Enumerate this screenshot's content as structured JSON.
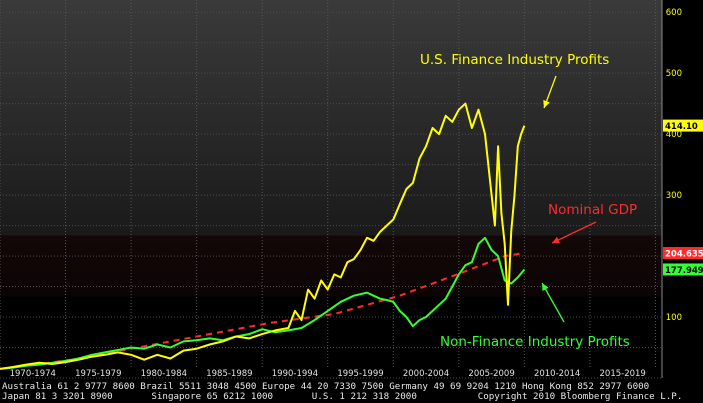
{
  "chart_data": {
    "type": "line",
    "title": "",
    "xlabel": "",
    "ylabel": "",
    "x_tick_labels": [
      "1970-1974",
      "1975-1979",
      "1980-1984",
      "1985-1989",
      "1990-1994",
      "1995-1999",
      "2000-2004",
      "2005-2009",
      "2010-2014",
      "2015-2019"
    ],
    "x_range": [
      1969.5,
      2020.0
    ],
    "y_ticks": [
      100,
      200,
      300,
      400,
      500,
      600
    ],
    "y_range": [
      0,
      620
    ],
    "grid": true,
    "series": [
      {
        "name": "U.S. Finance Industry Profits",
        "color": "#ffff00",
        "end_label": "414.10",
        "x": [
          1969.5,
          1970.5,
          1971.5,
          1972.5,
          1973.5,
          1974.5,
          1975.5,
          1976.5,
          1977.5,
          1978.5,
          1979.5,
          1980.5,
          1981.5,
          1982.5,
          1983.5,
          1984.5,
          1985.5,
          1986.5,
          1987.5,
          1988.5,
          1989.5,
          1990.5,
          1991.5,
          1992.0,
          1992.5,
          1993.0,
          1993.5,
          1994.0,
          1994.5,
          1995.0,
          1995.5,
          1996.0,
          1996.5,
          1997.0,
          1997.5,
          1998.0,
          1998.5,
          1999.0,
          1999.5,
          2000.0,
          2000.5,
          2001.0,
          2001.5,
          2002.0,
          2002.5,
          2003.0,
          2003.5,
          2004.0,
          2004.5,
          2005.0,
          2005.5,
          2006.0,
          2006.5,
          2007.0,
          2007.25,
          2007.5,
          2007.75,
          2008.0,
          2008.25,
          2008.5,
          2008.75,
          2009.0,
          2009.25,
          2009.5
        ],
        "values": [
          15,
          18,
          22,
          25,
          23,
          26,
          30,
          35,
          38,
          42,
          38,
          30,
          38,
          32,
          45,
          48,
          55,
          60,
          68,
          65,
          72,
          78,
          82,
          110,
          95,
          145,
          130,
          160,
          145,
          170,
          165,
          190,
          195,
          210,
          230,
          225,
          240,
          250,
          260,
          285,
          310,
          320,
          360,
          380,
          410,
          400,
          430,
          420,
          440,
          450,
          410,
          440,
          400,
          300,
          250,
          380,
          270,
          220,
          120,
          240,
          300,
          380,
          400,
          414
        ]
      },
      {
        "name": "Nominal GDP",
        "color": "#ff2a2a",
        "end_label": "204.6355",
        "x": [
          1969.5,
          1975.0,
          1980.0,
          1985.0,
          1990.0,
          1995.0,
          2000.0,
          2005.0,
          2008.0,
          2009.5
        ],
        "values": [
          15,
          30,
          50,
          70,
          90,
          105,
          135,
          175,
          200,
          205
        ]
      },
      {
        "name": "Non-Finance Industry Profits",
        "color": "#33ff33",
        "end_label": "177.9497",
        "x": [
          1969.5,
          1970.5,
          1971.5,
          1972.5,
          1973.5,
          1974.5,
          1975.5,
          1976.5,
          1977.5,
          1978.5,
          1979.5,
          1980.5,
          1981.5,
          1982.5,
          1983.5,
          1984.5,
          1985.5,
          1986.5,
          1987.5,
          1988.5,
          1989.5,
          1990.5,
          1991.5,
          1992.5,
          1993.5,
          1994.5,
          1995.5,
          1996.5,
          1997.5,
          1998.0,
          1998.5,
          1999.0,
          1999.5,
          2000.0,
          2000.5,
          2001.0,
          2001.5,
          2002.0,
          2002.5,
          2003.0,
          2003.5,
          2004.0,
          2004.5,
          2005.0,
          2005.5,
          2006.0,
          2006.5,
          2007.0,
          2007.5,
          2008.0,
          2008.5,
          2009.0,
          2009.5
        ],
        "values": [
          15,
          17,
          20,
          22,
          25,
          28,
          32,
          38,
          42,
          46,
          50,
          48,
          55,
          50,
          60,
          62,
          65,
          62,
          68,
          72,
          80,
          75,
          78,
          82,
          95,
          110,
          125,
          135,
          140,
          135,
          130,
          128,
          125,
          110,
          100,
          85,
          95,
          100,
          110,
          120,
          130,
          150,
          170,
          185,
          190,
          220,
          230,
          210,
          200,
          160,
          155,
          165,
          178
        ]
      }
    ],
    "annotations": [
      {
        "text": "U.S. Finance Industry Profits",
        "color": "#ffff00"
      },
      {
        "text": "Nominal GDP",
        "color": "#ff2a2a"
      },
      {
        "text": "Non-Finance Industry Profits",
        "color": "#33ff33"
      }
    ]
  },
  "footer": {
    "line1": "Australia 61 2 9777 8600 Brazil 5511 3048 4500 Europe 44 20 7330 7500 Germany 49 69 9204 1210 Hong Kong 852 2977 6000",
    "line2": "Japan 81 3 3201 8900       Singapore 65 6212 1000       U.S. 1 212 318 2000           Copyright 2010 Bloomberg Finance L.P."
  }
}
